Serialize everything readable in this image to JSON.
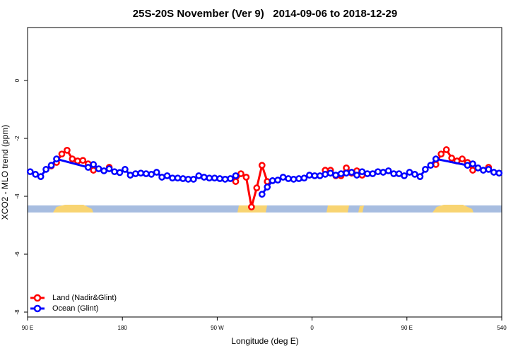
{
  "chart_data": {
    "type": "line",
    "title": "25S-20S November (Ver 9)   2014-09-06 to 2018-12-29",
    "x_label": "Longitude (deg E)",
    "y_label": "XCO2 - MLO trend (ppm)",
    "xlim": [
      90,
      540
    ],
    "xticks": [
      {
        "value": 90,
        "label": "90 E"
      },
      180,
      {
        "value": 270,
        "label": "90 W"
      },
      {
        "value": 360,
        "label": "0"
      },
      {
        "value": 450,
        "label": "90 E"
      },
      540
    ],
    "ylim": [
      -8.17,
      1.83
    ],
    "yticks": [
      -8,
      -6,
      -4,
      -2,
      0
    ],
    "legend": "bottom-left",
    "series": [
      {
        "name": "Land (Nadir&Glint)",
        "color": "#ff0000",
        "x": [
          112.5,
          117.5,
          122.5,
          127.5,
          132.5,
          137.5,
          142.5,
          147.5,
          152.5,
          157.5,
          167.5,
          172.5,
          287.5,
          292.5,
          297.5,
          302.5,
          307.5,
          312.5,
          317.5,
          322.5,
          372.5,
          377.5,
          382.5,
          387.5,
          392.5,
          397.5,
          402.5,
          407.5,
          412.5,
          477.5,
          482.5,
          487.5,
          492.5,
          497.5,
          502.5,
          507.5,
          512.5,
          517.5,
          527.5
        ],
        "values": [
          -2.95,
          -2.83,
          -2.54,
          -2.41,
          -2.71,
          -2.78,
          -2.76,
          -2.88,
          -3.1,
          null,
          -3.0,
          null,
          -3.49,
          -3.22,
          -3.34,
          -4.37,
          -3.71,
          -2.93,
          -3.49,
          null,
          -3.1,
          -3.1,
          -3.29,
          -3.29,
          -3.02,
          -3.2,
          -3.12,
          -3.27,
          null,
          -2.9,
          -2.54,
          -2.39,
          -2.68,
          -2.78,
          -2.71,
          -2.83,
          -3.1,
          null,
          -3.0
        ]
      },
      {
        "name": "Ocean (Glint)",
        "color": "#0000ff",
        "x": [
          92.5,
          97.5,
          102.5,
          107.5,
          112.5,
          117.5,
          147.5,
          152.5,
          157.5,
          162.5,
          167.5,
          172.5,
          177.5,
          182.5,
          187.5,
          192.5,
          197.5,
          202.5,
          207.5,
          212.5,
          217.5,
          222.5,
          227.5,
          232.5,
          237.5,
          242.5,
          247.5,
          252.5,
          257.5,
          262.5,
          267.5,
          272.5,
          277.5,
          282.5,
          287.5,
          302.5,
          312.5,
          317.5,
          322.5,
          327.5,
          332.5,
          337.5,
          342.5,
          347.5,
          352.5,
          357.5,
          362.5,
          367.5,
          372.5,
          377.5,
          382.5,
          387.5,
          392.5,
          397.5,
          402.5,
          407.5,
          412.5,
          417.5,
          422.5,
          427.5,
          432.5,
          437.5,
          442.5,
          447.5,
          452.5,
          457.5,
          462.5,
          467.5,
          472.5,
          477.5,
          507.5,
          512.5,
          517.5,
          522.5,
          527.5,
          532.5,
          537.5
        ],
        "values": [
          -3.15,
          -3.24,
          -3.32,
          -3.07,
          -2.93,
          -2.71,
          -3.0,
          -2.9,
          -3.05,
          -3.12,
          -3.05,
          -3.15,
          -3.18,
          -3.07,
          -3.27,
          -3.22,
          -3.2,
          -3.22,
          -3.24,
          -3.17,
          -3.34,
          -3.29,
          -3.37,
          -3.37,
          -3.39,
          -3.41,
          -3.41,
          -3.29,
          -3.34,
          -3.37,
          -3.37,
          -3.39,
          -3.41,
          -3.39,
          -3.29,
          null,
          -3.93,
          -3.68,
          -3.46,
          -3.44,
          -3.34,
          -3.39,
          -3.41,
          -3.39,
          -3.37,
          -3.27,
          -3.29,
          -3.29,
          -3.24,
          -3.2,
          -3.27,
          -3.22,
          -3.2,
          -3.17,
          -3.27,
          -3.15,
          -3.22,
          -3.22,
          -3.15,
          -3.17,
          -3.12,
          -3.22,
          -3.22,
          -3.29,
          -3.17,
          -3.24,
          -3.32,
          -3.07,
          -2.93,
          -2.71,
          -2.93,
          -2.88,
          -3.02,
          -3.1,
          -3.07,
          -3.17,
          -3.2
        ]
      }
    ]
  }
}
